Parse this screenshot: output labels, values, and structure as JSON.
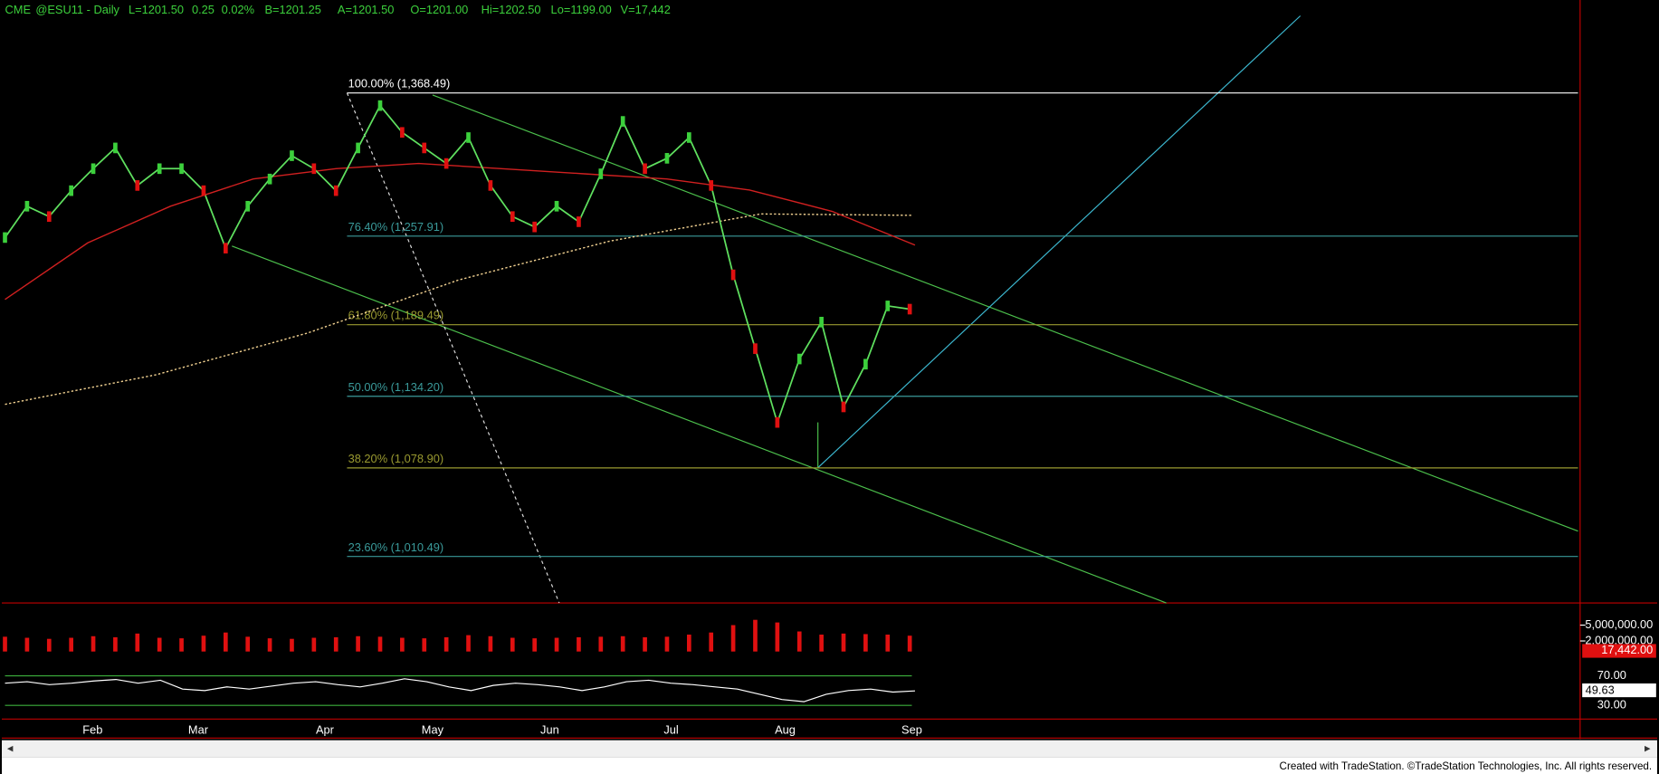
{
  "header": {
    "items": [
      "CME",
      "@ESU11 - Daily",
      "L=1201.50",
      "0.25",
      "0.02%",
      "B=1201.25",
      "A=1201.50",
      "O=1201.00",
      "Hi=1202.50",
      "Lo=1199.00",
      "V=17,442"
    ]
  },
  "price_chart": {
    "months": [
      "Feb",
      "Mar",
      "Apr",
      "May",
      "Jun",
      "Jul",
      "Aug",
      "Sep"
    ],
    "fib_levels": [
      {
        "value": 1368.49,
        "label": "100.00% (1,368.49)",
        "color": "#ffffff"
      },
      {
        "value": 1257.91,
        "label": "76.40% (1,257.91)",
        "color": "#3a9a9a"
      },
      {
        "value": 1189.49,
        "label": "61.80% (1,189.49)",
        "color": "#9a9a30"
      },
      {
        "value": 1134.2,
        "label": "50.00% (1,134.20)",
        "color": "#3a9a9a"
      },
      {
        "value": 1078.9,
        "label": "38.20% (1,078.90)",
        "color": "#9a9a30"
      },
      {
        "value": 1010.49,
        "label": "23.60% (1,010.49)",
        "color": "#3a9a9a"
      }
    ],
    "closes": [
      1256.8,
      1281,
      1273,
      1293,
      1310,
      1326,
      1297,
      1310,
      1310,
      1293,
      1248.6,
      1281,
      1302,
      1320,
      1310,
      1293,
      1326,
      1358.7,
      1338,
      1326,
      1314,
      1334,
      1297,
      1273,
      1265,
      1281,
      1269,
      1306,
      1346.5,
      1310,
      1318,
      1334,
      1297,
      1228,
      1171,
      1114,
      1163,
      1191.5,
      1126,
      1159,
      1204,
      1201.5
    ],
    "ma_50": [
      1209,
      1252.7,
      1281,
      1302,
      1310,
      1314,
      1310,
      1306,
      1302,
      1293.5,
      1277,
      1251
    ],
    "ma_200": [
      1128,
      1150.8,
      1183,
      1224,
      1254,
      1275,
      1274
    ]
  },
  "volume": {
    "values": [
      2800000,
      2600000,
      2400000,
      2600000,
      2900000,
      2700000,
      3400000,
      2600000,
      2500000,
      3000000,
      3600000,
      2800000,
      2500000,
      2400000,
      2600000,
      2700000,
      2900000,
      2800000,
      2600000,
      2500000,
      2700000,
      3100000,
      2900000,
      2600000,
      2500000,
      2600000,
      2700000,
      2800000,
      2900000,
      2700000,
      2800000,
      3200000,
      3600000,
      5000000,
      6000000,
      5500000,
      3800000,
      3200000,
      3400000,
      3300000,
      3200000,
      3000000
    ],
    "ticks": [
      {
        "value": 5000000,
        "label": "5,000,000.00"
      },
      {
        "value": 2000000,
        "label": "2,000,000.00"
      }
    ],
    "last": {
      "value": 17442,
      "label": "17,442.00"
    }
  },
  "oscillator": {
    "values": [
      60,
      62,
      58,
      60,
      63,
      65,
      60,
      64,
      52,
      50,
      55,
      52,
      56,
      60,
      62,
      58,
      55,
      60,
      66,
      62,
      55,
      50,
      57,
      60,
      58,
      55,
      50,
      55,
      62,
      64,
      60,
      58,
      55,
      52,
      45,
      38,
      35,
      45,
      50,
      52,
      48,
      49.63
    ],
    "ticks": [
      {
        "value": 70,
        "label": "70.00"
      },
      {
        "value": 30,
        "label": "30.00"
      }
    ]
  },
  "footer": {
    "text": "Created with TradeStation. ©TradeStation Technologies, Inc. All rights reserved."
  }
}
